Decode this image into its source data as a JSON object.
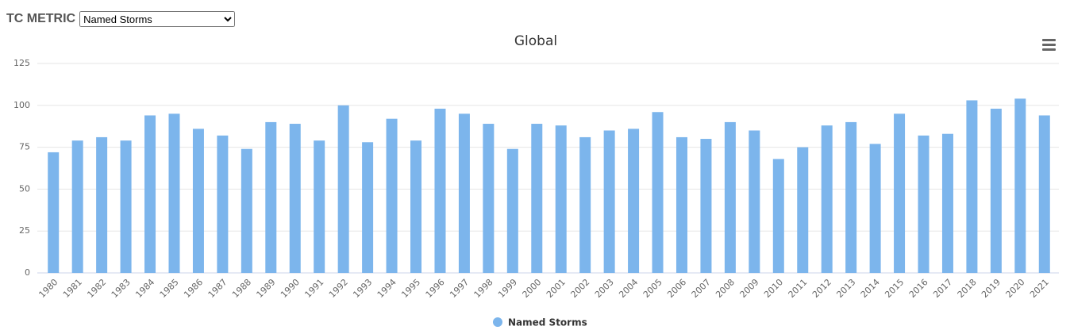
{
  "controls": {
    "label": "TC METRIC",
    "options": [
      "Named Storms"
    ]
  },
  "chart_data": {
    "type": "bar",
    "title": "Global",
    "categories": [
      "1980",
      "1981",
      "1982",
      "1983",
      "1984",
      "1985",
      "1986",
      "1987",
      "1988",
      "1989",
      "1990",
      "1991",
      "1992",
      "1993",
      "1994",
      "1995",
      "1996",
      "1997",
      "1998",
      "1999",
      "2000",
      "2001",
      "2002",
      "2003",
      "2004",
      "2005",
      "2006",
      "2007",
      "2008",
      "2009",
      "2010",
      "2011",
      "2012",
      "2013",
      "2014",
      "2015",
      "2016",
      "2017",
      "2018",
      "2019",
      "2020",
      "2021"
    ],
    "series": [
      {
        "name": "Named Storms",
        "color": "#7cb5ec",
        "values": [
          72,
          79,
          81,
          79,
          94,
          95,
          86,
          82,
          74,
          90,
          89,
          79,
          100,
          78,
          92,
          79,
          98,
          95,
          89,
          74,
          89,
          88,
          81,
          85,
          86,
          96,
          81,
          80,
          90,
          85,
          68,
          75,
          88,
          90,
          77,
          95,
          82,
          83,
          103,
          98,
          104,
          94
        ]
      }
    ],
    "ylim": [
      0,
      125
    ],
    "yticks": [
      0,
      25,
      50,
      75,
      100,
      125
    ],
    "grid": true,
    "legend": "bottom"
  }
}
